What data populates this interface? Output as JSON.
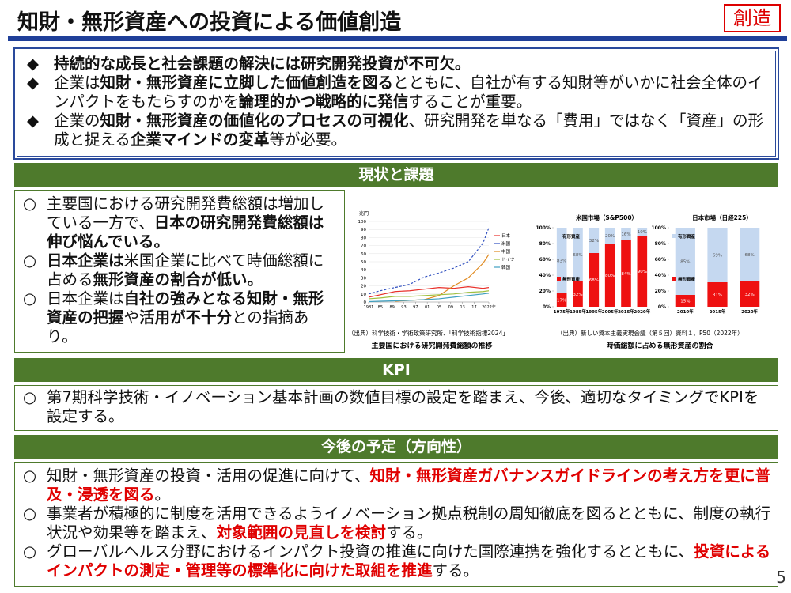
{
  "header": {
    "title": "知財・無形資産への投資による価値創造",
    "tag": "創造"
  },
  "summary": {
    "marker": "◆",
    "items": [
      [
        {
          "text": "持続的な成長と社会課題の解決には研究開発投資が不可欠。",
          "bold": true
        }
      ],
      [
        {
          "text": "企業は"
        },
        {
          "text": "知財・無形資産に立脚した価値創造を図る",
          "bold": true
        },
        {
          "text": "とともに、自社が有する知財等がいかに社会全体のインパクトをもたらすのかを"
        },
        {
          "text": "論理的かつ戦略的に発信",
          "bold": true
        },
        {
          "text": "することが重要。"
        }
      ],
      [
        {
          "text": "企業の"
        },
        {
          "text": "知財・無形資産の価値化のプロセスの可視化",
          "bold": true
        },
        {
          "text": "、研究開発を単なる「費用」ではなく「資産」の形成と捉える"
        },
        {
          "text": "企業マインドの変革",
          "bold": true
        },
        {
          "text": "等が必要。"
        }
      ]
    ]
  },
  "sections": [
    {
      "heading": "現状と課題",
      "marker": "○",
      "items": [
        [
          {
            "text": "主要国における研究開発費総額は増加している一方で、"
          },
          {
            "text": "日本の研究開発費総額は伸び悩んでいる。",
            "bold": true
          }
        ],
        [
          {
            "text": "日本企業は",
            "bold": true
          },
          {
            "text": "米国企業に比べて時価総額に占める"
          },
          {
            "text": "無形資産の割合が低い。",
            "bold": true
          }
        ],
        [
          {
            "text": "日本企業は"
          },
          {
            "text": "自社の強みとなる知財・無形資産の把握",
            "bold": true
          },
          {
            "text": "や"
          },
          {
            "text": "活用が不十分",
            "bold": true
          },
          {
            "text": "との指摘あり。"
          }
        ]
      ]
    },
    {
      "heading": "KPI",
      "marker": "○",
      "items": [
        [
          {
            "text": "第7期科学技術・イノベーション基本計画の数値目標の設定を踏まえ、今後、適切なタイミングでKPIを設定する。"
          }
        ]
      ]
    },
    {
      "heading": "今後の予定（方向性）",
      "marker": "○",
      "items": [
        [
          {
            "text": "知財・無形資産の投資・活用の促進に向けて、"
          },
          {
            "text": "知財・無形資産ガバナンスガイドラインの考え方を更に普及・浸透を図る",
            "bold": true,
            "red": true
          },
          {
            "text": "。"
          }
        ],
        [
          {
            "text": "事業者が積極的に制度を活用できるようイノベーション拠点税制の周知徹底を図るとともに、制度の執行状況や効果等を踏まえ、"
          },
          {
            "text": "対象範囲の見直しを検討",
            "bold": true,
            "red": true
          },
          {
            "text": "する。"
          }
        ],
        [
          {
            "text": "グローバルヘルス分野におけるインパクト投資の推進に向けた国際連携を強化するとともに、"
          },
          {
            "text": "投資によるインパクトの測定・管理等の標準化に向けた取組を推進",
            "bold": true,
            "red": true
          },
          {
            "text": "する。"
          }
        ]
      ]
    }
  ],
  "figures": {
    "rd_chart": {
      "type": "line",
      "unit": "兆円",
      "x": [
        1981,
        1985,
        1990,
        1995,
        2000,
        2005,
        2010,
        2015,
        2020,
        2022
      ],
      "xlim": [
        1981,
        2022
      ],
      "xticks": [
        1981,
        {
          "value": 1985,
          "label": "85"
        },
        {
          "value": 1989,
          "label": "89"
        },
        {
          "value": 1993,
          "label": "93"
        },
        {
          "value": 1997,
          "label": "97"
        },
        {
          "value": 2001,
          "label": "01"
        },
        {
          "value": 2005,
          "label": "05"
        },
        {
          "value": 2009,
          "label": "09"
        },
        {
          "value": 2013,
          "label": "13"
        },
        {
          "value": 2017,
          "label": "17"
        },
        {
          "value": 2022,
          "label": "2022年"
        }
      ],
      "ylim": [
        0,
        100
      ],
      "yticks": [
        0,
        10,
        20,
        30,
        40,
        50,
        60,
        70,
        80,
        90,
        100
      ],
      "series": [
        {
          "name": "日本",
          "color": "#e8302a",
          "values": [
            6,
            9,
            13,
            14,
            16,
            18,
            17,
            19,
            17,
            18
          ]
        },
        {
          "name": "米国",
          "color": "#3050c0",
          "values": [
            10,
            14,
            18,
            22,
            31,
            36,
            42,
            50,
            73,
            92
          ]
        },
        {
          "name": "中国",
          "color": "#e08a20",
          "values": [
            null,
            null,
            1,
            2,
            3,
            8,
            20,
            30,
            48,
            59
          ]
        },
        {
          "name": "ドイツ",
          "color": "#a0c040",
          "values": [
            4,
            5,
            7,
            7,
            8,
            9,
            10,
            12,
            13,
            14
          ]
        },
        {
          "name": "韓国",
          "color": "#40a0c0",
          "values": [
            0.5,
            1,
            1.5,
            2,
            3,
            4,
            6,
            8,
            10,
            11
          ]
        }
      ],
      "source": "（出典）科学技術・学術政策研究所、「科学技術指標2024」",
      "caption": "主要国における研究開発費総額の推移"
    },
    "intangible_charts": [
      {
        "type": "bar",
        "title": "米国市場（S&P500）",
        "categories": [
          "1975年",
          "1985年",
          "1995年",
          "2005年",
          "2015年",
          "2020年"
        ],
        "ylim": [
          0,
          100
        ],
        "yticks": [
          {
            "value": 0,
            "label": "0%"
          },
          {
            "value": 20,
            "label": "20%"
          },
          {
            "value": 40,
            "label": "40%"
          },
          {
            "value": 60,
            "label": "60%"
          },
          {
            "value": 80,
            "label": "80%"
          },
          {
            "value": 100,
            "label": "100%"
          }
        ],
        "series": [
          {
            "name": "無形資産",
            "color": "#ee1111",
            "values": [
              17,
              32,
              68,
              80,
              84,
              90
            ],
            "value_labels": [
              "17%",
              "32%",
              "68%",
              "80%",
              "84%",
              "90%"
            ]
          },
          {
            "name": "有形資産",
            "color": "#c5d8f0",
            "values": [
              83,
              68,
              32,
              20,
              16,
              10
            ],
            "value_labels": [
              "83%",
              "68%",
              "32%",
              "20%",
              "16%",
              "10%"
            ]
          }
        ]
      },
      {
        "type": "bar",
        "title": "日本市場（日経225）",
        "categories": [
          "2010年",
          "2015年",
          "2020年"
        ],
        "ylim": [
          0,
          100
        ],
        "yticks": [
          {
            "value": 0,
            "label": "0%"
          },
          {
            "value": 20,
            "label": "20%"
          },
          {
            "value": 40,
            "label": "40%"
          },
          {
            "value": 60,
            "label": "60%"
          },
          {
            "value": 80,
            "label": "80%"
          },
          {
            "value": 100,
            "label": "100%"
          }
        ],
        "series": [
          {
            "name": "無形資産",
            "color": "#ee1111",
            "values": [
              15,
              31,
              32
            ],
            "value_labels": [
              "15%",
              "31%",
              "32%"
            ]
          },
          {
            "name": "有形資産",
            "color": "#c5d8f0",
            "values": [
              85,
              69,
              68
            ],
            "value_labels": [
              "85%",
              "69%",
              "68%"
            ]
          }
        ]
      }
    ],
    "intangible_source": "（出典）新しい資本主義実現会議（第５回）資料１、P50（2022年）",
    "intangible_caption": "時価総額に占める無形資産の割合"
  },
  "page_number": "5"
}
